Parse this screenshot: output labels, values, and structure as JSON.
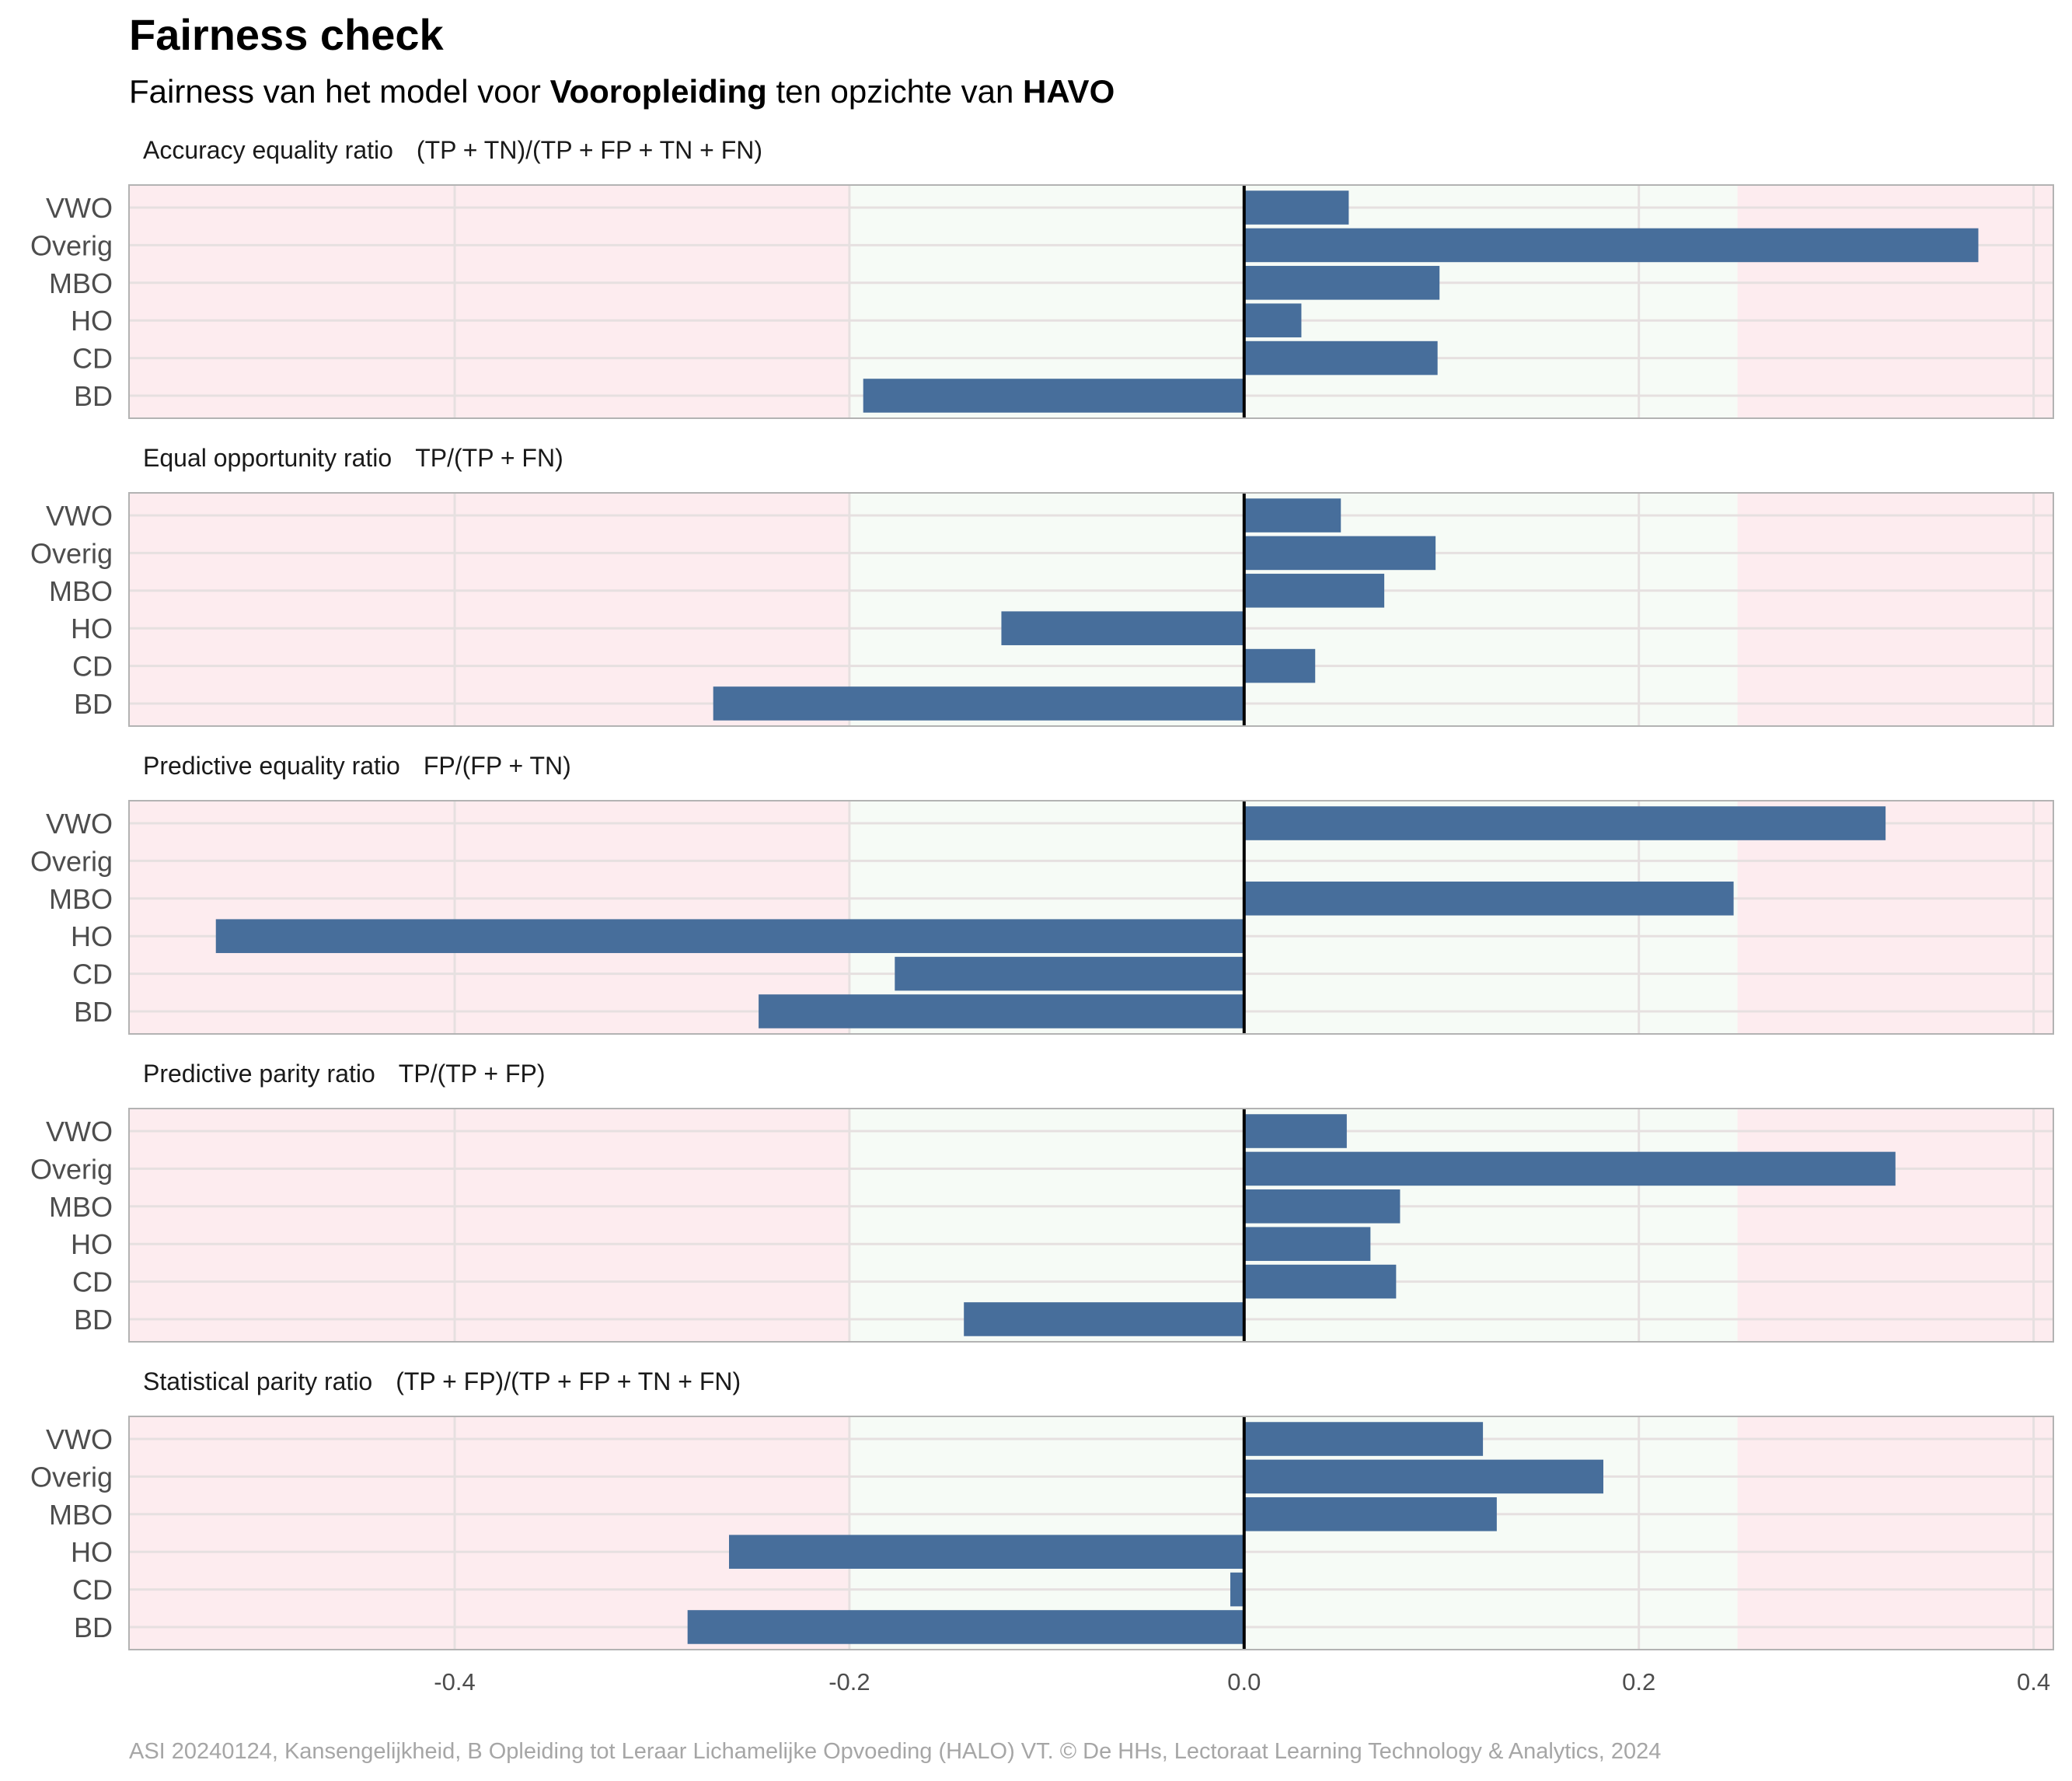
{
  "chart_data": {
    "type": "bar",
    "orientation": "horizontal",
    "title": "Fairness check",
    "subtitle": {
      "parts": [
        {
          "text": "Fairness van het model voor ",
          "bold": false
        },
        {
          "text": "Vooropleiding",
          "bold": true
        },
        {
          "text": " ten opzichte van ",
          "bold": false
        },
        {
          "text": "HAVO",
          "bold": true
        }
      ]
    },
    "caption": "ASI 20240124, Kansengelijkheid, B Opleiding tot Leraar Lichamelijke Opvoeding (HALO) VT. © De HHs, Lectoraat Learning Technology & Analytics, 2024",
    "categories": [
      "VWO",
      "Overig",
      "MBO",
      "HO",
      "CD",
      "BD"
    ],
    "xlim": [
      -0.565,
      0.41
    ],
    "xticks": [
      -0.4,
      -0.2,
      0.0,
      0.2,
      0.4
    ],
    "xtick_labels": [
      "-0.4",
      "-0.2",
      "0.0",
      "0.2",
      "0.4"
    ],
    "fair_band": [
      -0.2,
      0.25
    ],
    "colors": {
      "bar": "#476e9b",
      "unfair_zone": "#fdecef",
      "fair_zone": "#f6fbf6",
      "zero_line": "#000000",
      "grid": "#e6e0e0",
      "panel_border": "#b3b3b3"
    },
    "panels": [
      {
        "label": "Accuracy equality ratio",
        "formula": "(TP + TN)/(TP + FP + TN + FN)",
        "values": [
          0.053,
          0.372,
          0.099,
          0.029,
          0.098,
          -0.193
        ]
      },
      {
        "label": "Equal opportunity ratio",
        "formula": "TP/(TP + FN)",
        "values": [
          0.049,
          0.097,
          0.071,
          -0.123,
          0.036,
          -0.269
        ]
      },
      {
        "label": "Predictive equality ratio",
        "formula": "FP/(FP + TN)",
        "values": [
          0.325,
          null,
          0.248,
          -0.521,
          -0.177,
          -0.246
        ]
      },
      {
        "label": "Predictive parity ratio",
        "formula": "TP/(TP + FP)",
        "values": [
          0.052,
          0.33,
          0.079,
          0.064,
          0.077,
          -0.142
        ]
      },
      {
        "label": "Statistical parity ratio",
        "formula": "(TP + FP)/(TP + FP + TN + FN)",
        "values": [
          0.121,
          0.182,
          0.128,
          -0.261,
          -0.007,
          -0.282
        ]
      }
    ]
  }
}
